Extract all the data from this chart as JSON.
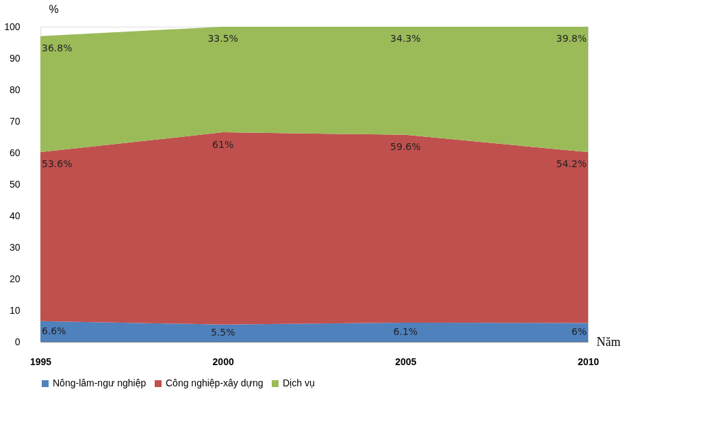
{
  "chart_data": {
    "type": "area",
    "stacked": true,
    "ylabel": "%",
    "xlabel": "Năm",
    "x": [
      1995,
      2000,
      2005,
      2010
    ],
    "xlim": [
      1995,
      2010
    ],
    "xticks": [
      1995,
      2000,
      2005,
      2010
    ],
    "ylim": [
      0,
      100
    ],
    "yticks": [
      0,
      10,
      20,
      30,
      40,
      50,
      60,
      70,
      80,
      90,
      100
    ],
    "series": [
      {
        "name": "Nông-lâm-ngư nghiệp",
        "color": "#4f81bd",
        "values": [
          6.6,
          5.5,
          6.1,
          6
        ],
        "value_labels": [
          "6.6%",
          "5.5%",
          "6.1%",
          "6%"
        ]
      },
      {
        "name": "Công nghiệp-xây dựng",
        "color": "#c0504d",
        "values": [
          53.6,
          61,
          59.6,
          54.2
        ],
        "value_labels": [
          "53.6%",
          "61%",
          "59.6%",
          "54.2%"
        ]
      },
      {
        "name": "Dịch vụ",
        "color": "#9bbb59",
        "values": [
          36.8,
          33.5,
          34.3,
          39.8
        ],
        "value_labels": [
          "36.8%",
          "33.5%",
          "34.3%",
          "39.8%"
        ]
      }
    ],
    "legend": "bottom",
    "grid": false
  }
}
